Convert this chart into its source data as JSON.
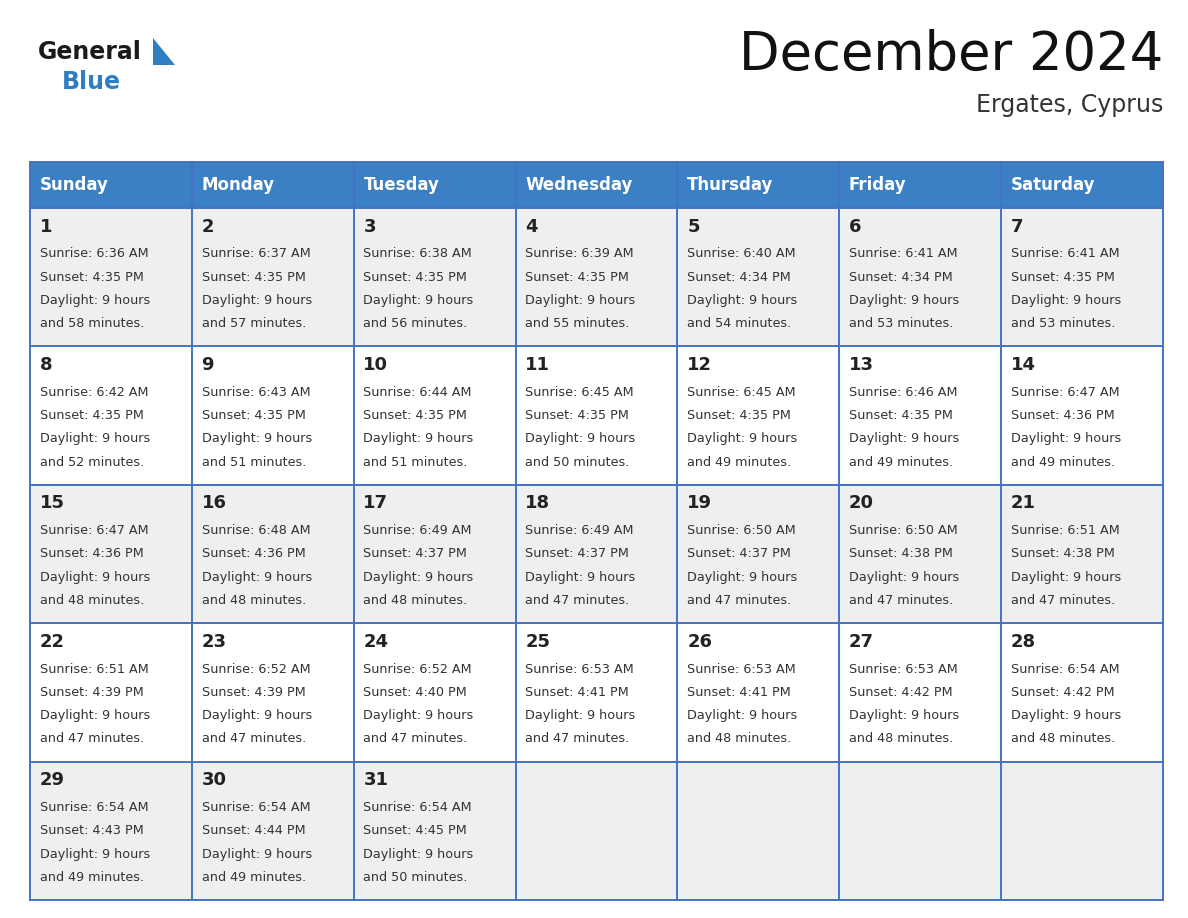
{
  "title": "December 2024",
  "subtitle": "Ergates, Cyprus",
  "header_color": "#3B7FC4",
  "header_text_color": "#FFFFFF",
  "cell_bg_odd": "#EFEFEF",
  "cell_bg_even": "#FFFFFF",
  "day_number_color": "#222222",
  "cell_text_color": "#333333",
  "border_color": "#4472C4",
  "days_of_week": [
    "Sunday",
    "Monday",
    "Tuesday",
    "Wednesday",
    "Thursday",
    "Friday",
    "Saturday"
  ],
  "calendar_data": [
    [
      {
        "day": 1,
        "sunrise": "6:36 AM",
        "sunset": "4:35 PM",
        "daylight_hours": 9,
        "daylight_minutes": 58
      },
      {
        "day": 2,
        "sunrise": "6:37 AM",
        "sunset": "4:35 PM",
        "daylight_hours": 9,
        "daylight_minutes": 57
      },
      {
        "day": 3,
        "sunrise": "6:38 AM",
        "sunset": "4:35 PM",
        "daylight_hours": 9,
        "daylight_minutes": 56
      },
      {
        "day": 4,
        "sunrise": "6:39 AM",
        "sunset": "4:35 PM",
        "daylight_hours": 9,
        "daylight_minutes": 55
      },
      {
        "day": 5,
        "sunrise": "6:40 AM",
        "sunset": "4:34 PM",
        "daylight_hours": 9,
        "daylight_minutes": 54
      },
      {
        "day": 6,
        "sunrise": "6:41 AM",
        "sunset": "4:34 PM",
        "daylight_hours": 9,
        "daylight_minutes": 53
      },
      {
        "day": 7,
        "sunrise": "6:41 AM",
        "sunset": "4:35 PM",
        "daylight_hours": 9,
        "daylight_minutes": 53
      }
    ],
    [
      {
        "day": 8,
        "sunrise": "6:42 AM",
        "sunset": "4:35 PM",
        "daylight_hours": 9,
        "daylight_minutes": 52
      },
      {
        "day": 9,
        "sunrise": "6:43 AM",
        "sunset": "4:35 PM",
        "daylight_hours": 9,
        "daylight_minutes": 51
      },
      {
        "day": 10,
        "sunrise": "6:44 AM",
        "sunset": "4:35 PM",
        "daylight_hours": 9,
        "daylight_minutes": 51
      },
      {
        "day": 11,
        "sunrise": "6:45 AM",
        "sunset": "4:35 PM",
        "daylight_hours": 9,
        "daylight_minutes": 50
      },
      {
        "day": 12,
        "sunrise": "6:45 AM",
        "sunset": "4:35 PM",
        "daylight_hours": 9,
        "daylight_minutes": 49
      },
      {
        "day": 13,
        "sunrise": "6:46 AM",
        "sunset": "4:35 PM",
        "daylight_hours": 9,
        "daylight_minutes": 49
      },
      {
        "day": 14,
        "sunrise": "6:47 AM",
        "sunset": "4:36 PM",
        "daylight_hours": 9,
        "daylight_minutes": 49
      }
    ],
    [
      {
        "day": 15,
        "sunrise": "6:47 AM",
        "sunset": "4:36 PM",
        "daylight_hours": 9,
        "daylight_minutes": 48
      },
      {
        "day": 16,
        "sunrise": "6:48 AM",
        "sunset": "4:36 PM",
        "daylight_hours": 9,
        "daylight_minutes": 48
      },
      {
        "day": 17,
        "sunrise": "6:49 AM",
        "sunset": "4:37 PM",
        "daylight_hours": 9,
        "daylight_minutes": 48
      },
      {
        "day": 18,
        "sunrise": "6:49 AM",
        "sunset": "4:37 PM",
        "daylight_hours": 9,
        "daylight_minutes": 47
      },
      {
        "day": 19,
        "sunrise": "6:50 AM",
        "sunset": "4:37 PM",
        "daylight_hours": 9,
        "daylight_minutes": 47
      },
      {
        "day": 20,
        "sunrise": "6:50 AM",
        "sunset": "4:38 PM",
        "daylight_hours": 9,
        "daylight_minutes": 47
      },
      {
        "day": 21,
        "sunrise": "6:51 AM",
        "sunset": "4:38 PM",
        "daylight_hours": 9,
        "daylight_minutes": 47
      }
    ],
    [
      {
        "day": 22,
        "sunrise": "6:51 AM",
        "sunset": "4:39 PM",
        "daylight_hours": 9,
        "daylight_minutes": 47
      },
      {
        "day": 23,
        "sunrise": "6:52 AM",
        "sunset": "4:39 PM",
        "daylight_hours": 9,
        "daylight_minutes": 47
      },
      {
        "day": 24,
        "sunrise": "6:52 AM",
        "sunset": "4:40 PM",
        "daylight_hours": 9,
        "daylight_minutes": 47
      },
      {
        "day": 25,
        "sunrise": "6:53 AM",
        "sunset": "4:41 PM",
        "daylight_hours": 9,
        "daylight_minutes": 47
      },
      {
        "day": 26,
        "sunrise": "6:53 AM",
        "sunset": "4:41 PM",
        "daylight_hours": 9,
        "daylight_minutes": 48
      },
      {
        "day": 27,
        "sunrise": "6:53 AM",
        "sunset": "4:42 PM",
        "daylight_hours": 9,
        "daylight_minutes": 48
      },
      {
        "day": 28,
        "sunrise": "6:54 AM",
        "sunset": "4:42 PM",
        "daylight_hours": 9,
        "daylight_minutes": 48
      }
    ],
    [
      {
        "day": 29,
        "sunrise": "6:54 AM",
        "sunset": "4:43 PM",
        "daylight_hours": 9,
        "daylight_minutes": 49
      },
      {
        "day": 30,
        "sunrise": "6:54 AM",
        "sunset": "4:44 PM",
        "daylight_hours": 9,
        "daylight_minutes": 49
      },
      {
        "day": 31,
        "sunrise": "6:54 AM",
        "sunset": "4:45 PM",
        "daylight_hours": 9,
        "daylight_minutes": 50
      },
      null,
      null,
      null,
      null
    ]
  ],
  "logo_general_color": "#1A1A1A",
  "logo_blue_color": "#2E7EC1",
  "title_fontsize": 38,
  "subtitle_fontsize": 17,
  "header_fontsize": 12,
  "day_num_fontsize": 13,
  "cell_text_fontsize": 9.2,
  "fig_width": 11.88,
  "fig_height": 9.18
}
